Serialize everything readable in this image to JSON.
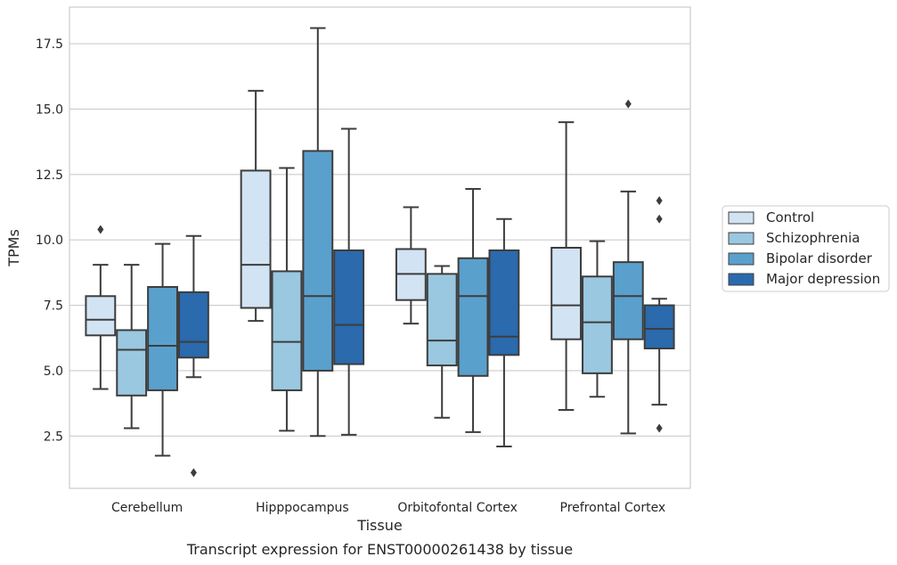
{
  "chart_data": {
    "type": "box",
    "title": "",
    "caption": "Transcript expression for ENST00000261438 by tissue",
    "xlabel": "Tissue",
    "ylabel": "TPMs",
    "ylim": [
      0.5,
      18.9
    ],
    "yticks": [
      "2.5",
      "5.0",
      "7.5",
      "10.0",
      "12.5",
      "15.0",
      "17.5"
    ],
    "grid": "horizontal",
    "legend_position": "right",
    "categories": [
      "Cerebellum",
      "Hipppocampus",
      "Orbitofontal Cortex",
      "Prefrontal Cortex"
    ],
    "series": [
      {
        "name": "Control",
        "color": "#d2e3f3",
        "boxes": [
          {
            "whisker_low": 4.3,
            "q1": 6.35,
            "median": 6.95,
            "q3": 7.85,
            "whisker_high": 9.05,
            "outliers": [
              10.4
            ]
          },
          {
            "whisker_low": 6.9,
            "q1": 7.4,
            "median": 9.05,
            "q3": 12.65,
            "whisker_high": 15.7,
            "outliers": []
          },
          {
            "whisker_low": 6.8,
            "q1": 7.7,
            "median": 8.7,
            "q3": 9.65,
            "whisker_high": 11.25,
            "outliers": []
          },
          {
            "whisker_low": 3.5,
            "q1": 6.2,
            "median": 7.5,
            "q3": 9.7,
            "whisker_high": 14.5,
            "outliers": []
          }
        ]
      },
      {
        "name": "Schizophrenia",
        "color": "#9ac8e0",
        "boxes": [
          {
            "whisker_low": 2.8,
            "q1": 4.05,
            "median": 5.8,
            "q3": 6.55,
            "whisker_high": 9.05,
            "outliers": []
          },
          {
            "whisker_low": 2.7,
            "q1": 4.25,
            "median": 6.1,
            "q3": 8.8,
            "whisker_high": 12.75,
            "outliers": []
          },
          {
            "whisker_low": 3.2,
            "q1": 5.2,
            "median": 6.15,
            "q3": 8.7,
            "whisker_high": 9.0,
            "outliers": []
          },
          {
            "whisker_low": 4.0,
            "q1": 4.9,
            "median": 6.85,
            "q3": 8.6,
            "whisker_high": 9.95,
            "outliers": []
          }
        ]
      },
      {
        "name": "Bipolar disorder",
        "color": "#5aa0cd",
        "boxes": [
          {
            "whisker_low": 1.75,
            "q1": 4.25,
            "median": 5.95,
            "q3": 8.2,
            "whisker_high": 9.85,
            "outliers": []
          },
          {
            "whisker_low": 2.5,
            "q1": 5.0,
            "median": 7.85,
            "q3": 13.4,
            "whisker_high": 18.1,
            "outliers": []
          },
          {
            "whisker_low": 2.65,
            "q1": 4.8,
            "median": 7.85,
            "q3": 9.3,
            "whisker_high": 11.95,
            "outliers": []
          },
          {
            "whisker_low": 2.6,
            "q1": 6.2,
            "median": 7.85,
            "q3": 9.15,
            "whisker_high": 11.85,
            "outliers": [
              15.2
            ]
          }
        ]
      },
      {
        "name": "Major depression",
        "color": "#2a6aad",
        "boxes": [
          {
            "whisker_low": 4.75,
            "q1": 5.5,
            "median": 6.1,
            "q3": 8.0,
            "whisker_high": 10.15,
            "outliers": [
              1.1
            ]
          },
          {
            "whisker_low": 2.55,
            "q1": 5.25,
            "median": 6.75,
            "q3": 9.6,
            "whisker_high": 14.25,
            "outliers": []
          },
          {
            "whisker_low": 2.1,
            "q1": 5.6,
            "median": 6.3,
            "q3": 9.6,
            "whisker_high": 10.8,
            "outliers": []
          },
          {
            "whisker_low": 3.7,
            "q1": 5.85,
            "median": 6.6,
            "q3": 7.5,
            "whisker_high": 7.75,
            "outliers": [
              2.8,
              10.8,
              11.5
            ]
          }
        ]
      }
    ]
  }
}
